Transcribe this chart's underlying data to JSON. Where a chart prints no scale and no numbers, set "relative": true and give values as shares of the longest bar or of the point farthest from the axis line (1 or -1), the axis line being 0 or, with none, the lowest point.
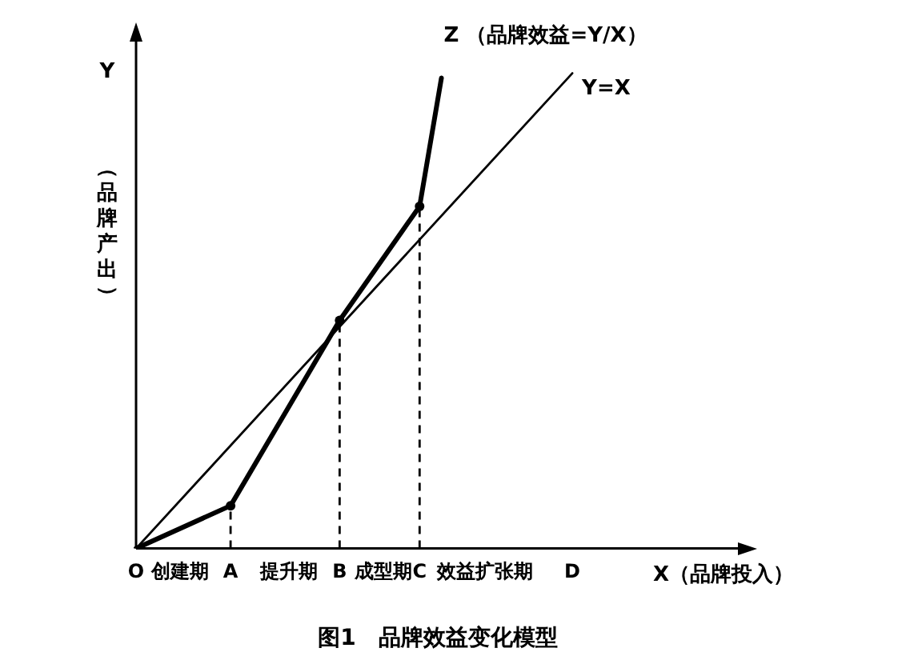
{
  "chart_data": {
    "type": "line",
    "relative": true,
    "title": "图1　品牌效益变化模型",
    "xlabel": "X（品牌投入）",
    "ylabel": "（品牌产出）",
    "annotations": [
      "Y"
    ],
    "categories": [
      "O",
      null,
      null,
      null,
      null,
      null,
      "创建期",
      null,
      null,
      null,
      null,
      null,
      null,
      "A",
      null,
      null,
      null,
      null,
      null,
      null,
      null,
      "提升期",
      null,
      null,
      null,
      null,
      null,
      null,
      "B",
      null,
      null,
      null,
      null,
      null,
      "成型期",
      null,
      null,
      null,
      null,
      "C",
      null,
      null,
      null,
      null,
      null,
      null,
      null,
      null,
      "效益扩张期",
      null,
      null,
      null,
      null,
      null,
      null,
      null,
      null,
      null,
      null,
      null,
      "D",
      null,
      null,
      null,
      null,
      null,
      null,
      null,
      null,
      null,
      null,
      null,
      null,
      null,
      null,
      null,
      null,
      null,
      null,
      null,
      null,
      null,
      null,
      null
    ],
    "grid": false,
    "legend": false,
    "marker": "none",
    "series": [
      {
        "name": "Z （品牌效益=Y/X）",
        "color": "#000000",
        "line_style": "solid",
        "values": [
          0,
          null,
          null,
          null,
          null,
          null,
          null,
          null,
          null,
          null,
          null,
          null,
          null,
          0.09,
          null,
          null,
          null,
          null,
          null,
          null,
          null,
          null,
          null,
          null,
          null,
          null,
          null,
          null,
          0.48,
          null,
          null,
          null,
          null,
          null,
          null,
          null,
          null,
          null,
          null,
          0.72,
          null,
          null,
          0.99,
          null,
          null,
          null,
          null,
          null,
          null,
          null,
          null,
          null,
          null,
          null,
          null,
          null,
          null,
          null,
          null,
          null,
          null,
          null,
          null,
          null,
          null,
          null,
          null,
          null,
          null,
          null,
          null,
          null,
          null,
          null,
          null,
          null,
          null,
          null,
          null,
          null,
          null,
          null,
          null,
          null
        ]
      },
      {
        "name": "Y=X",
        "color": "#000000",
        "line_style": "solid",
        "values": [
          0,
          null,
          null,
          null,
          null,
          null,
          null,
          null,
          null,
          null,
          null,
          null,
          null,
          null,
          null,
          null,
          null,
          null,
          null,
          null,
          null,
          null,
          null,
          null,
          null,
          null,
          null,
          null,
          null,
          null,
          null,
          null,
          null,
          null,
          null,
          null,
          null,
          null,
          null,
          null,
          null,
          null,
          null,
          null,
          null,
          null,
          null,
          null,
          null,
          null,
          null,
          null,
          null,
          null,
          null,
          null,
          null,
          null,
          null,
          null,
          1.0,
          null,
          null,
          null,
          null,
          null,
          null,
          null,
          null,
          null,
          null,
          null,
          null,
          null,
          null,
          null,
          null,
          null,
          null,
          null,
          null,
          null,
          null,
          null
        ]
      },
      {
        "type": "lollipop",
        "color": "#000000",
        "line_style": "dashed",
        "marker": "circle",
        "values": [
          null,
          null,
          null,
          null,
          null,
          null,
          null,
          null,
          null,
          null,
          null,
          null,
          null,
          0.09,
          null,
          null,
          null,
          null,
          null,
          null,
          null,
          null,
          null,
          null,
          null,
          null,
          null,
          null,
          0.48,
          null,
          null,
          null,
          null,
          null,
          null,
          null,
          null,
          null,
          null,
          0.72,
          null,
          null,
          null,
          null,
          null,
          null,
          null,
          null,
          null,
          null,
          null,
          null,
          null,
          null,
          null,
          null,
          null,
          null,
          null,
          null,
          null,
          null,
          null,
          null,
          null,
          null,
          null,
          null,
          null,
          null,
          null,
          null,
          null,
          null,
          null,
          null,
          null,
          null,
          null,
          null,
          null,
          null,
          null,
          null
        ]
      }
    ]
  }
}
